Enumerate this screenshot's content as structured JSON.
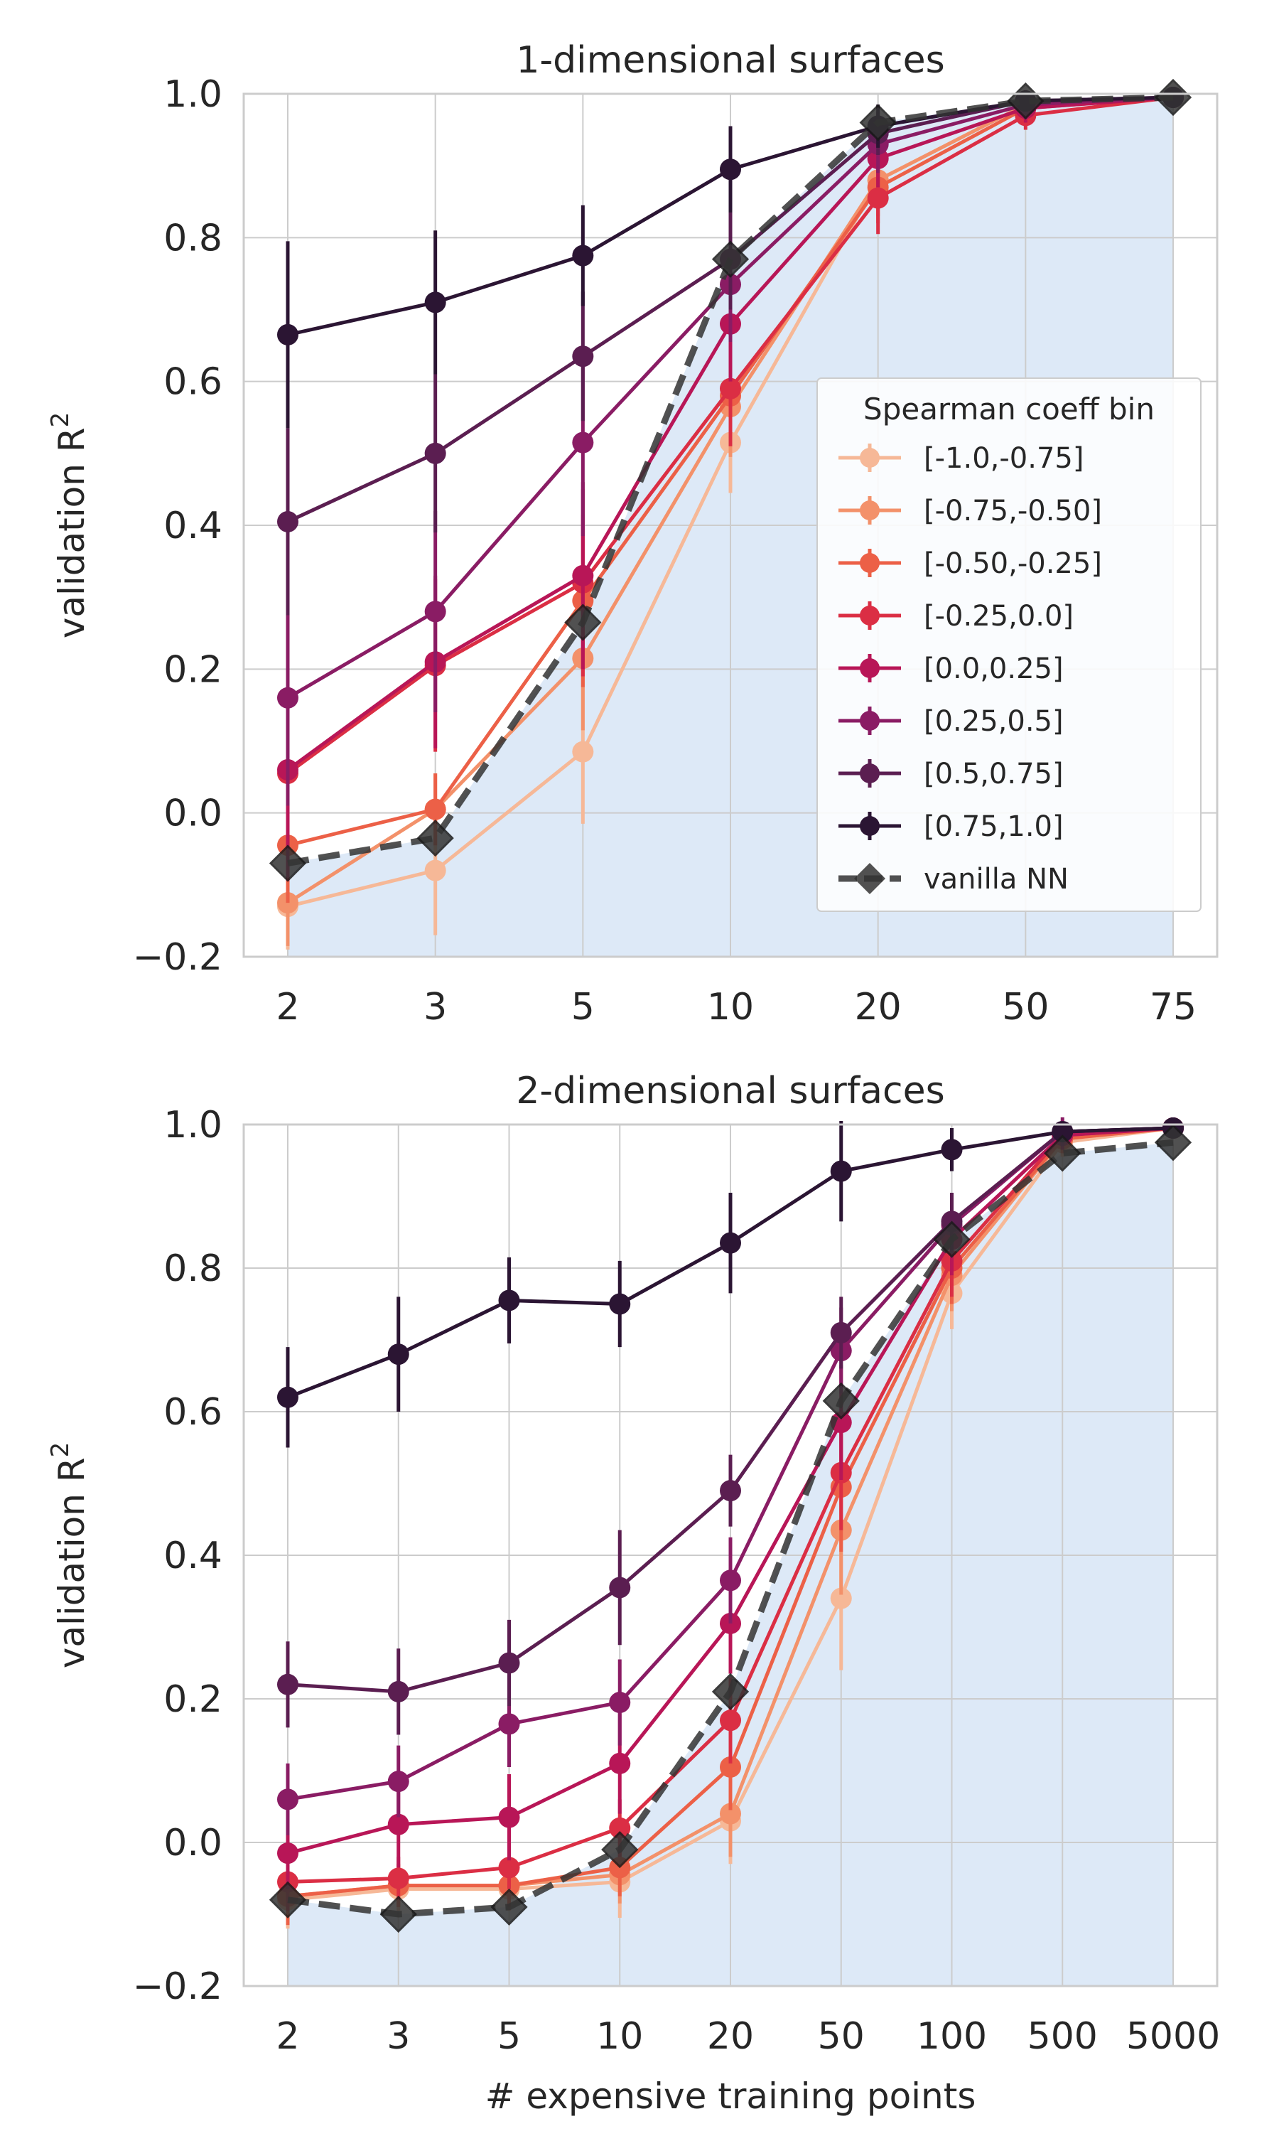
{
  "chart_data": [
    {
      "type": "line",
      "title": "1-dimensional surfaces",
      "xlabel": "",
      "ylabel": "validation R",
      "ylabel_sup": "2",
      "ylim": [
        -0.2,
        1.0
      ],
      "yticks": [
        "−0.2",
        "0.0",
        "0.2",
        "0.4",
        "0.6",
        "0.8",
        "1.0"
      ],
      "categories": [
        "2",
        "3",
        "5",
        "10",
        "20",
        "50",
        "75"
      ],
      "grid": true,
      "legend": {
        "title": "Spearman coeff bin",
        "placement": "center-right",
        "entries": [
          "[-1.0,-0.75]",
          "[-0.75,-0.50]",
          "[-0.50,-0.25]",
          "[-0.25,0.0]",
          "[0.0,0.25]",
          "[0.25,0.5]",
          "[0.5,0.75]",
          "[0.75,1.0]",
          "vanilla NN"
        ]
      },
      "series": [
        {
          "name": "[-1.0,-0.75]",
          "color": "#f6b897",
          "values": [
            -0.13,
            -0.08,
            0.085,
            0.515,
            0.88,
            0.985,
            0.995
          ],
          "err": [
            0.06,
            0.09,
            0.1,
            0.07,
            0.05,
            0.02,
            0.01
          ]
        },
        {
          "name": "[-0.75,-0.50]",
          "color": "#f3916a",
          "values": [
            -0.125,
            0.005,
            0.215,
            0.565,
            0.88,
            0.985,
            0.995
          ],
          "err": [
            0.06,
            0.05,
            0.1,
            0.07,
            0.05,
            0.02,
            0.01
          ]
        },
        {
          "name": "[-0.50,-0.25]",
          "color": "#ec6047",
          "values": [
            -0.045,
            0.005,
            0.295,
            0.58,
            0.87,
            0.98,
            0.995
          ],
          "err": [
            0.08,
            0.05,
            0.12,
            0.07,
            0.05,
            0.02,
            0.01
          ]
        },
        {
          "name": "[-0.25,0.0]",
          "color": "#db2e44",
          "values": [
            0.055,
            0.205,
            0.32,
            0.59,
            0.855,
            0.97,
            0.995
          ],
          "err": [
            0.15,
            0.12,
            0.13,
            0.08,
            0.05,
            0.02,
            0.01
          ]
        },
        {
          "name": "[0.0,0.25]",
          "color": "#b81657",
          "values": [
            0.06,
            0.21,
            0.33,
            0.68,
            0.91,
            0.98,
            0.995
          ],
          "err": [
            0.15,
            0.12,
            0.13,
            0.08,
            0.04,
            0.02,
            0.01
          ]
        },
        {
          "name": "[0.25,0.5]",
          "color": "#8a1c64",
          "values": [
            0.16,
            0.28,
            0.515,
            0.735,
            0.93,
            0.985,
            0.995
          ],
          "err": [
            0.15,
            0.14,
            0.13,
            0.08,
            0.04,
            0.02,
            0.01
          ]
        },
        {
          "name": "[0.5,0.75]",
          "color": "#5b1e51",
          "values": [
            0.405,
            0.5,
            0.635,
            0.77,
            0.945,
            0.99,
            0.995
          ],
          "err": [
            0.13,
            0.11,
            0.09,
            0.07,
            0.03,
            0.01,
            0.01
          ]
        },
        {
          "name": "[0.75,1.0]",
          "color": "#2b1533",
          "values": [
            0.665,
            0.71,
            0.775,
            0.895,
            0.955,
            0.99,
            0.995
          ],
          "err": [
            0.13,
            0.1,
            0.07,
            0.06,
            0.03,
            0.01,
            0.01
          ]
        },
        {
          "name": "vanilla NN",
          "color": "#333333",
          "values": [
            -0.07,
            -0.035,
            0.265,
            0.77,
            0.96,
            0.99,
            0.995
          ],
          "err": [
            0,
            0,
            0,
            0,
            0,
            0,
            0
          ],
          "dashed": true
        }
      ]
    },
    {
      "type": "line",
      "title": "2-dimensional surfaces",
      "xlabel": "# expensive training points",
      "ylabel": "validation R",
      "ylabel_sup": "2",
      "ylim": [
        -0.2,
        1.0
      ],
      "yticks": [
        "−0.2",
        "0.0",
        "0.2",
        "0.4",
        "0.6",
        "0.8",
        "1.0"
      ],
      "categories": [
        "2",
        "3",
        "5",
        "10",
        "20",
        "50",
        "100",
        "500",
        "5000"
      ],
      "grid": true,
      "series": [
        {
          "name": "[-1.0,-0.75]",
          "color": "#f6b897",
          "values": [
            -0.08,
            -0.065,
            -0.065,
            -0.055,
            0.03,
            0.34,
            0.765,
            0.975,
            0.995
          ],
          "err": [
            0.04,
            0.03,
            0.03,
            0.05,
            0.06,
            0.1,
            0.05,
            0.02,
            0.01
          ]
        },
        {
          "name": "[-0.75,-0.50]",
          "color": "#f3916a",
          "values": [
            -0.075,
            -0.06,
            -0.06,
            -0.045,
            0.04,
            0.435,
            0.79,
            0.98,
            0.995
          ],
          "err": [
            0.04,
            0.03,
            0.03,
            0.04,
            0.06,
            0.09,
            0.05,
            0.02,
            0.01
          ]
        },
        {
          "name": "[-0.50,-0.25]",
          "color": "#ec6047",
          "values": [
            -0.075,
            -0.06,
            -0.06,
            -0.035,
            0.105,
            0.495,
            0.8,
            0.98,
            0.995
          ],
          "err": [
            0.04,
            0.03,
            0.03,
            0.04,
            0.06,
            0.09,
            0.05,
            0.02,
            0.01
          ]
        },
        {
          "name": "[-0.25,0.0]",
          "color": "#db2e44",
          "values": [
            -0.055,
            -0.05,
            -0.035,
            0.02,
            0.17,
            0.515,
            0.81,
            0.985,
            0.995
          ],
          "err": [
            0.04,
            0.03,
            0.03,
            0.04,
            0.06,
            0.08,
            0.05,
            0.02,
            0.01
          ]
        },
        {
          "name": "[0.0,0.25]",
          "color": "#b81657",
          "values": [
            -0.015,
            0.025,
            0.035,
            0.11,
            0.305,
            0.585,
            0.84,
            0.985,
            0.995
          ],
          "err": [
            0.05,
            0.06,
            0.06,
            0.07,
            0.07,
            0.08,
            0.05,
            0.02,
            0.01
          ]
        },
        {
          "name": "[0.25,0.5]",
          "color": "#8a1c64",
          "values": [
            0.06,
            0.085,
            0.165,
            0.195,
            0.365,
            0.685,
            0.86,
            0.99,
            0.995
          ],
          "err": [
            0.05,
            0.05,
            0.06,
            0.06,
            0.06,
            0.06,
            0.04,
            0.02,
            0.01
          ]
        },
        {
          "name": "[0.5,0.75]",
          "color": "#5b1e51",
          "values": [
            0.22,
            0.21,
            0.25,
            0.355,
            0.49,
            0.71,
            0.865,
            0.99,
            0.995
          ],
          "err": [
            0.06,
            0.06,
            0.06,
            0.08,
            0.05,
            0.05,
            0.04,
            0.01,
            0.01
          ]
        },
        {
          "name": "[0.75,1.0]",
          "color": "#2b1533",
          "values": [
            0.62,
            0.68,
            0.755,
            0.75,
            0.835,
            0.935,
            0.965,
            0.99,
            0.995
          ],
          "err": [
            0.07,
            0.08,
            0.06,
            0.06,
            0.07,
            0.07,
            0.03,
            0.01,
            0.01
          ]
        },
        {
          "name": "vanilla NN",
          "color": "#333333",
          "values": [
            -0.08,
            -0.1,
            -0.09,
            -0.01,
            0.21,
            0.615,
            0.84,
            0.96,
            0.975
          ],
          "err": [
            0,
            0,
            0,
            0,
            0,
            0,
            0,
            0,
            0
          ],
          "dashed": true
        }
      ]
    }
  ]
}
